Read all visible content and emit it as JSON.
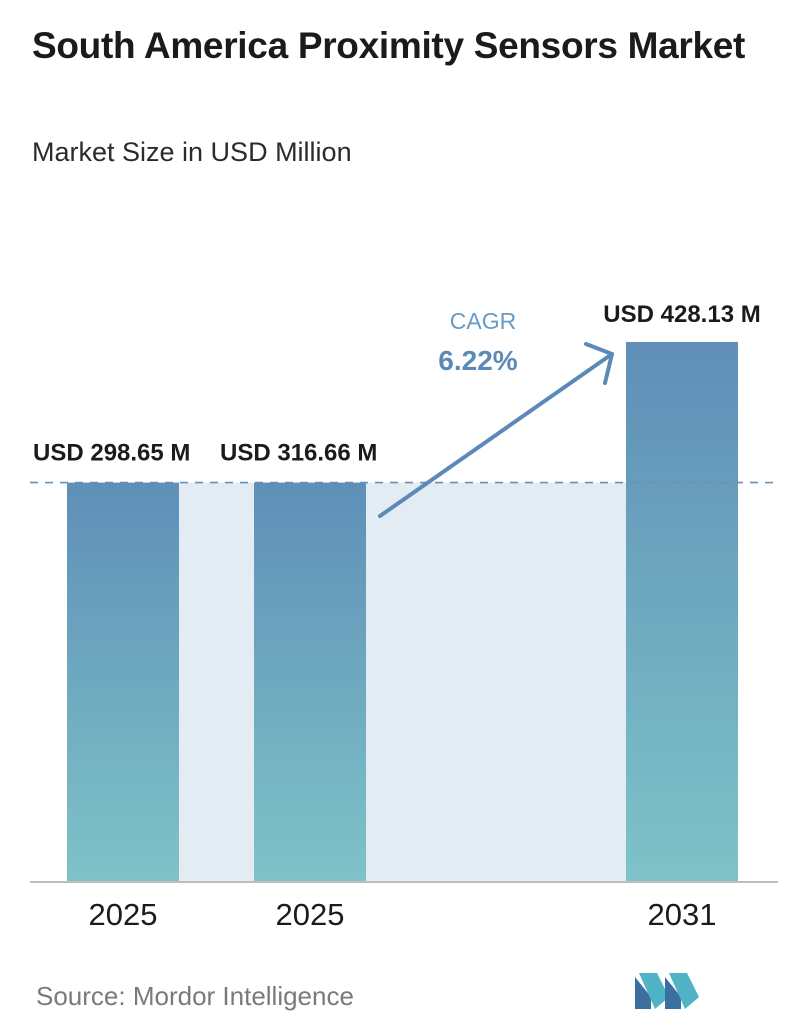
{
  "header": {
    "title": "South America Proximity Sensors Market",
    "subtitle": "Market Size in USD Million"
  },
  "footer": {
    "source": "Source: Mordor Intelligence",
    "logo_icon": "mordor-intelligence-logo-icon"
  },
  "colors": {
    "bar_top": "#5f8fb8",
    "bar_bottom": "#7ec3c8",
    "band": "#e3ebf3",
    "arrow": "#5b8ab8",
    "cagr_label": "#6a9ac4",
    "cagr_value": "#5b8ab8",
    "baseline": "#bdbdbd",
    "dashed": "#6b8fb5"
  },
  "chart_data": {
    "type": "bar",
    "title": "South America Proximity Sensors Market",
    "subtitle": "Market Size in USD Million",
    "categories": [
      "2025",
      "2025",
      "2031"
    ],
    "values": [
      298.65,
      316.66,
      428.13
    ],
    "value_labels": [
      "USD 298.65 M",
      "USD 316.66 M",
      "USD 428.13 M"
    ],
    "ylim": [
      0,
      440
    ],
    "grid": false,
    "annotation": {
      "label": "CAGR",
      "value": "6.22%"
    }
  }
}
